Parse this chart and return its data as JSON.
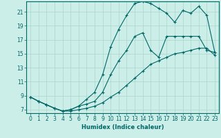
{
  "xlabel": "Humidex (Indice chaleur)",
  "bg_color": "#cceee8",
  "grid_color": "#aad4cc",
  "line_color": "#006666",
  "xlim": [
    -0.5,
    23.5
  ],
  "ylim": [
    6.5,
    22.5
  ],
  "xticks": [
    0,
    1,
    2,
    3,
    4,
    5,
    6,
    7,
    8,
    9,
    10,
    11,
    12,
    13,
    14,
    15,
    16,
    17,
    18,
    19,
    20,
    21,
    22,
    23
  ],
  "yticks": [
    7,
    9,
    11,
    13,
    15,
    17,
    19,
    21
  ],
  "line_top_x": [
    0,
    1,
    2,
    3,
    4,
    5,
    6,
    7,
    8,
    9,
    10,
    11,
    12,
    13,
    14,
    15,
    16,
    17,
    18,
    19,
    20,
    21,
    22,
    23
  ],
  "line_top_y": [
    8.8,
    8.2,
    7.7,
    7.2,
    6.8,
    7.0,
    7.5,
    8.5,
    9.5,
    12.0,
    16.0,
    18.5,
    20.5,
    22.2,
    22.5,
    22.2,
    21.5,
    20.8,
    19.5,
    21.2,
    20.8,
    21.8,
    20.5,
    15.2
  ],
  "line_mid_x": [
    0,
    1,
    2,
    3,
    4,
    5,
    6,
    7,
    8,
    9,
    10,
    11,
    12,
    13,
    14,
    15,
    16,
    17,
    18,
    19,
    20,
    21,
    22,
    23
  ],
  "line_mid_y": [
    8.8,
    8.2,
    7.7,
    7.2,
    6.8,
    7.0,
    7.5,
    7.8,
    8.2,
    9.5,
    12.0,
    14.0,
    15.5,
    17.5,
    18.0,
    15.5,
    14.5,
    17.5,
    17.5,
    17.5,
    17.5,
    17.5,
    15.5,
    15.2
  ],
  "line_bot_x": [
    0,
    1,
    2,
    3,
    4,
    5,
    6,
    7,
    8,
    9,
    10,
    11,
    12,
    13,
    14,
    15,
    16,
    17,
    18,
    19,
    20,
    21,
    22,
    23
  ],
  "line_bot_y": [
    8.8,
    8.2,
    7.7,
    7.2,
    6.8,
    6.8,
    7.0,
    7.2,
    7.5,
    8.0,
    8.8,
    9.5,
    10.5,
    11.5,
    12.5,
    13.5,
    14.0,
    14.5,
    15.0,
    15.2,
    15.5,
    15.8,
    15.8,
    14.8
  ],
  "xlabel_fontsize": 6,
  "tick_fontsize": 5.5
}
